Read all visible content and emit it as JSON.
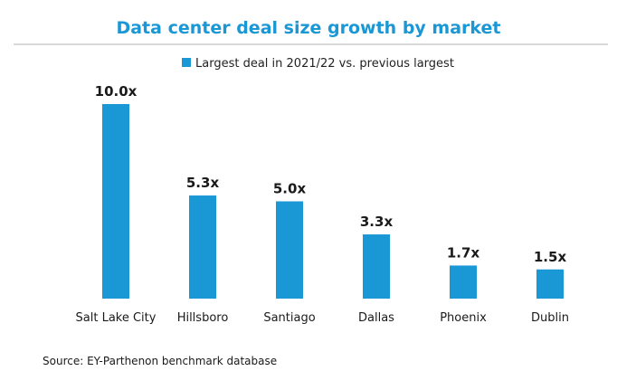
{
  "chart_data": {
    "type": "bar",
    "title": "Data center deal size growth by market",
    "categories": [
      "Salt Lake City",
      "Hillsboro",
      "Santiago",
      "Dallas",
      "Phoenix",
      "Dublin"
    ],
    "series": [
      {
        "name": "Largest deal in 2021/22 vs. previous largest",
        "values": [
          10.0,
          5.3,
          5.0,
          3.3,
          1.7,
          1.5
        ],
        "labels": [
          "10.0x",
          "5.3x",
          "5.0x",
          "3.3x",
          "1.7x",
          "1.5x"
        ]
      }
    ],
    "xlabel": "",
    "ylabel": "",
    "ylim": [
      0,
      10
    ],
    "grid": false,
    "legend_position": "top-center",
    "source": "Source: EY-Parthenon benchmark database"
  },
  "colors": {
    "bar": "#1a97d5",
    "title": "#1a97d5",
    "rule": "#b3b3b3"
  }
}
